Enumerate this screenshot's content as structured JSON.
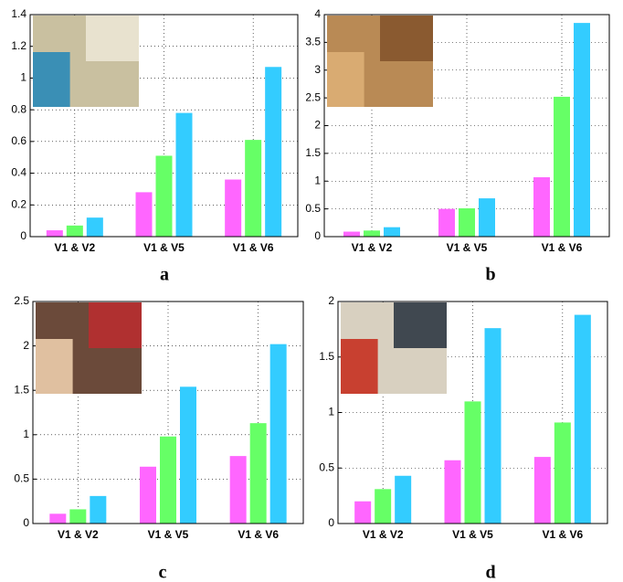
{
  "chart_data": [
    {
      "type": "bar",
      "caption": "a",
      "categories": [
        "V1 & V2",
        "V1 & V5",
        "V1 & V6"
      ],
      "series": [
        {
          "color": "#ff66ff",
          "values": [
            0.04,
            0.28,
            0.36
          ]
        },
        {
          "color": "#66ff66",
          "values": [
            0.07,
            0.51,
            0.61
          ]
        },
        {
          "color": "#33ccff",
          "values": [
            0.12,
            0.78,
            1.07
          ]
        }
      ],
      "ylim": [
        0,
        1.4
      ],
      "yticks": [
        0,
        0.2,
        0.4,
        0.6,
        0.8,
        1,
        1.2,
        1.4
      ],
      "grid": true
    },
    {
      "type": "bar",
      "caption": "b",
      "categories": [
        "V1 & V2",
        "V1 & V5",
        "V1 & V6"
      ],
      "series": [
        {
          "color": "#ff66ff",
          "values": [
            0.09,
            0.5,
            1.07
          ]
        },
        {
          "color": "#66ff66",
          "values": [
            0.11,
            0.51,
            2.52
          ]
        },
        {
          "color": "#33ccff",
          "values": [
            0.17,
            0.69,
            3.85
          ]
        }
      ],
      "ylim": [
        0,
        4
      ],
      "yticks": [
        0,
        0.5,
        1,
        1.5,
        2,
        2.5,
        3,
        3.5,
        4
      ],
      "grid": true
    },
    {
      "type": "bar",
      "caption": "c",
      "categories": [
        "V1 & V2",
        "V1 & V5",
        "V1 & V6"
      ],
      "series": [
        {
          "color": "#ff66ff",
          "values": [
            0.11,
            0.64,
            0.76
          ]
        },
        {
          "color": "#66ff66",
          "values": [
            0.16,
            0.98,
            1.13
          ]
        },
        {
          "color": "#33ccff",
          "values": [
            0.31,
            1.54,
            2.02
          ]
        }
      ],
      "ylim": [
        0,
        2.5
      ],
      "yticks": [
        0,
        0.5,
        1,
        1.5,
        2,
        2.5
      ],
      "grid": true
    },
    {
      "type": "bar",
      "caption": "d",
      "categories": [
        "V1 & V2",
        "V1 & V5",
        "V1 & V6"
      ],
      "series": [
        {
          "color": "#ff66ff",
          "values": [
            0.2,
            0.57,
            0.6
          ]
        },
        {
          "color": "#66ff66",
          "values": [
            0.31,
            1.1,
            0.91
          ]
        },
        {
          "color": "#33ccff",
          "values": [
            0.43,
            1.76,
            1.88
          ]
        }
      ],
      "ylim": [
        0,
        2
      ],
      "yticks": [
        0,
        0.5,
        1,
        1.5,
        2
      ],
      "grid": true
    }
  ]
}
